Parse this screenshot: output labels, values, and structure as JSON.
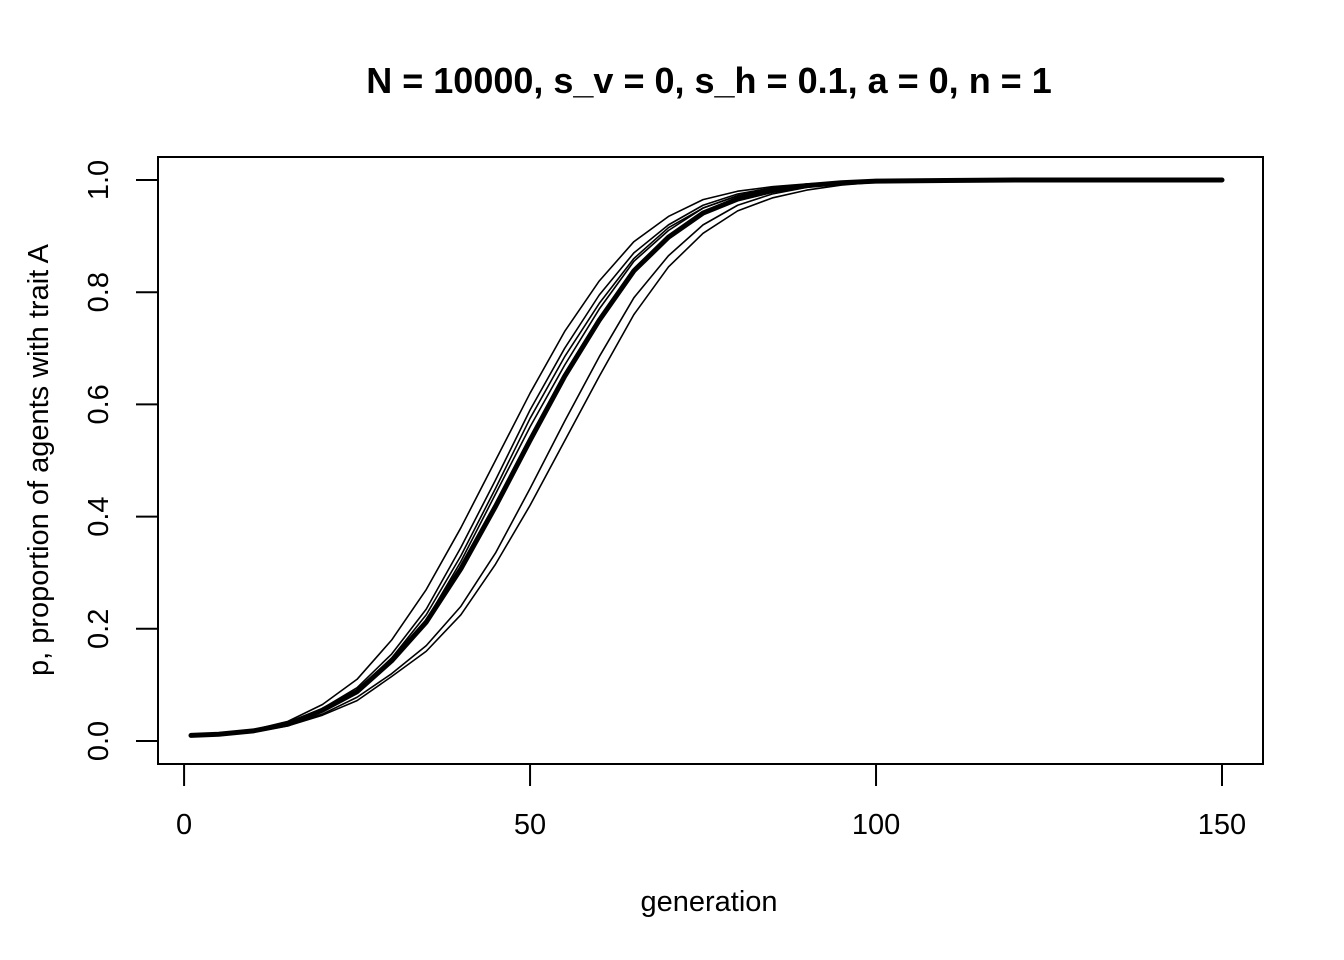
{
  "chart_data": {
    "type": "line",
    "title": "N = 10000, s_v = 0, s_h = 0.1, a = 0, n = 1",
    "xlabel": "generation",
    "ylabel": "p, proportion of agents with trait A",
    "xlim": [
      1,
      150
    ],
    "ylim": [
      0,
      1
    ],
    "x_ticks": [
      0,
      50,
      100,
      150
    ],
    "y_ticks": [
      0.0,
      0.2,
      0.4,
      0.6,
      0.8,
      1.0
    ],
    "x_tick_labels": [
      "0",
      "50",
      "100",
      "150"
    ],
    "y_tick_labels": [
      "0.0",
      "0.2",
      "0.4",
      "0.6",
      "0.8",
      "1.0"
    ],
    "grid": false,
    "legend": "none",
    "x": [
      1,
      5,
      10,
      15,
      20,
      25,
      30,
      35,
      40,
      45,
      50,
      55,
      60,
      65,
      70,
      75,
      80,
      85,
      90,
      95,
      100,
      110,
      120,
      130,
      140,
      150
    ],
    "series": [
      {
        "values": [
          0.01,
          0.012,
          0.018,
          0.03,
          0.055,
          0.085,
          0.14,
          0.215,
          0.32,
          0.44,
          0.56,
          0.67,
          0.77,
          0.855,
          0.91,
          0.95,
          0.972,
          0.985,
          0.992,
          0.996,
          0.998,
          0.999,
          1.0,
          1.0,
          1.0,
          1.0
        ]
      },
      {
        "values": [
          0.01,
          0.013,
          0.02,
          0.035,
          0.065,
          0.11,
          0.18,
          0.27,
          0.38,
          0.5,
          0.62,
          0.73,
          0.82,
          0.89,
          0.935,
          0.965,
          0.98,
          0.988,
          0.993,
          0.996,
          0.998,
          0.999,
          1.0,
          1.0,
          1.0,
          1.0
        ]
      },
      {
        "values": [
          0.01,
          0.012,
          0.017,
          0.028,
          0.048,
          0.078,
          0.12,
          0.17,
          0.24,
          0.335,
          0.45,
          0.57,
          0.685,
          0.79,
          0.865,
          0.92,
          0.955,
          0.975,
          0.987,
          0.994,
          0.997,
          0.999,
          1.0,
          1.0,
          1.0,
          1.0
        ]
      },
      {
        "values": [
          0.01,
          0.012,
          0.019,
          0.032,
          0.058,
          0.095,
          0.155,
          0.235,
          0.345,
          0.465,
          0.59,
          0.7,
          0.795,
          0.87,
          0.92,
          0.955,
          0.975,
          0.986,
          0.992,
          0.996,
          0.998,
          0.999,
          1.0,
          1.0,
          1.0,
          1.0
        ]
      },
      {
        "values": [
          0.01,
          0.012,
          0.018,
          0.031,
          0.056,
          0.09,
          0.148,
          0.225,
          0.33,
          0.45,
          0.575,
          0.685,
          0.78,
          0.86,
          0.915,
          0.95,
          0.972,
          0.985,
          0.991,
          0.995,
          0.998,
          0.999,
          1.0,
          1.0,
          1.0,
          1.0
        ]
      },
      {
        "values": [
          0.01,
          0.012,
          0.016,
          0.027,
          0.046,
          0.072,
          0.115,
          0.16,
          0.225,
          0.315,
          0.42,
          0.535,
          0.65,
          0.76,
          0.845,
          0.905,
          0.945,
          0.968,
          0.982,
          0.991,
          0.996,
          0.999,
          1.0,
          1.0,
          1.0,
          1.0
        ]
      }
    ],
    "mean": {
      "values": [
        0.01,
        0.012,
        0.018,
        0.03,
        0.055,
        0.088,
        0.143,
        0.212,
        0.307,
        0.418,
        0.536,
        0.65,
        0.75,
        0.838,
        0.898,
        0.941,
        0.966,
        0.981,
        0.99,
        0.995,
        0.998,
        0.999,
        1.0,
        1.0,
        1.0,
        1.0
      ]
    }
  }
}
